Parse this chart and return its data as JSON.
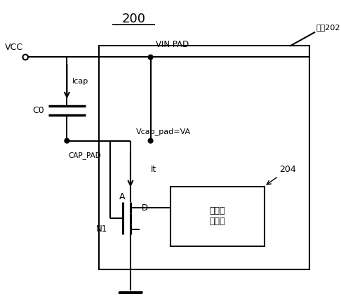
{
  "title": "200",
  "chip_label": "芯片202",
  "vcc_label": "VCC",
  "icap_label": "Icap",
  "c0_label": "C0",
  "cap_pad_label": "CAP_PAD",
  "vin_pad_label": "VIN PAD",
  "vcap_label": "Vcap_pad=VA",
  "it_label": "It",
  "a_label": "A",
  "n1_label": "N1",
  "d_label": "D",
  "block_label": "局压控\n制模块",
  "block_num": "204",
  "line_color": "#000000",
  "background_color": "#ffffff",
  "figsize": [
    4.86,
    4.29
  ],
  "dpi": 100
}
